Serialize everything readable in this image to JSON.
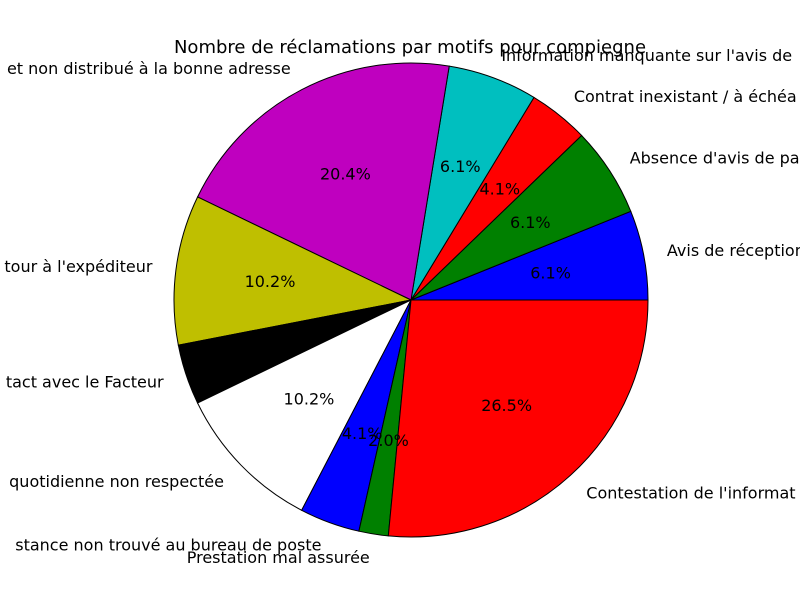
{
  "chart_data": {
    "type": "pie",
    "title": "Nombre de réclamations par motifs pour compiegne",
    "start_angle_deg": 0,
    "direction": "counterclockwise",
    "categories": [
      "Avis de réception",
      "Absence d'avis de pa",
      "Contrat inexistant / à échéa",
      "Information manquante sur l'avis de",
      "et non distribué à la bonne adresse",
      "tour à l'expéditeur",
      "tact avec le Facteur",
      "quotidienne non respectée",
      "stance non trouvé au bureau de poste",
      "Prestation mal assurée",
      "Contestation de l'informat"
    ],
    "values": [
      6.1,
      6.1,
      4.1,
      6.1,
      20.4,
      10.2,
      4.1,
      10.2,
      4.1,
      2.0,
      26.5
    ],
    "percent_labels": [
      "6.1%",
      "6.1%",
      "4.1%",
      "6.1%",
      "20.4%",
      "10.2%",
      "",
      "10.2%",
      "4.1%",
      "2.0%",
      "26.5%"
    ],
    "colors": [
      "#0000ff",
      "#008000",
      "#ff0000",
      "#00bfbf",
      "#bf00bf",
      "#bfbf00",
      "#000000",
      "#ffffff",
      "#0000ff",
      "#008000",
      "#ff0000"
    ]
  }
}
